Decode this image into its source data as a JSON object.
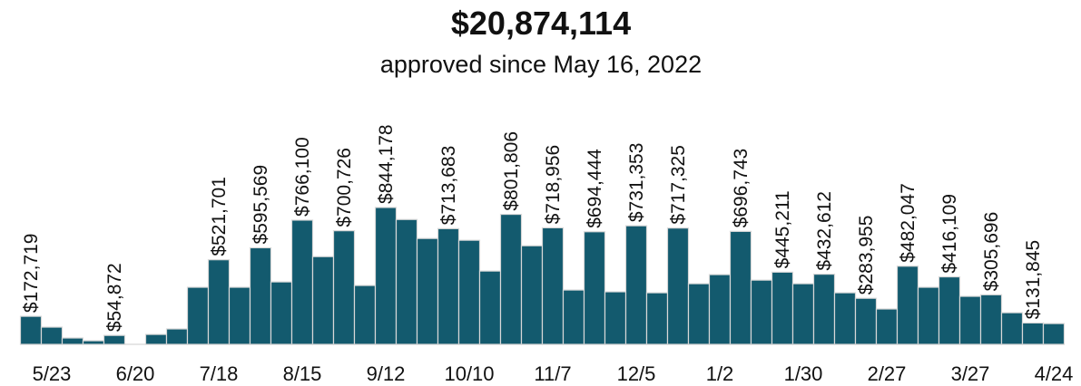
{
  "chart_data": {
    "type": "bar",
    "title": "$20,874,114",
    "subtitle": "approved since May 16, 2022",
    "color": "#135a6e",
    "ylim": [
      0,
      900000
    ],
    "categories": [
      null,
      "5/23",
      null,
      null,
      null,
      "6/20",
      null,
      null,
      null,
      "7/18",
      null,
      null,
      null,
      "8/15",
      null,
      null,
      null,
      "9/12",
      null,
      null,
      null,
      "10/10",
      null,
      null,
      null,
      "11/7",
      null,
      null,
      null,
      "12/5",
      null,
      null,
      null,
      "1/2",
      null,
      null,
      null,
      "1/30",
      null,
      null,
      null,
      "2/27",
      null,
      null,
      null,
      "3/27",
      null,
      null,
      null,
      "4/24"
    ],
    "values": [
      172719,
      106000,
      39000,
      22000,
      54872,
      0,
      61000,
      95000,
      352000,
      521701,
      352000,
      595569,
      385000,
      766100,
      541000,
      700726,
      363000,
      844178,
      770000,
      653000,
      713683,
      642000,
      452000,
      801806,
      608000,
      718956,
      335000,
      694444,
      324000,
      731353,
      318000,
      717325,
      374000,
      430000,
      696743,
      396000,
      445211,
      374000,
      432612,
      318000,
      283955,
      218000,
      482047,
      352000,
      416109,
      296000,
      305696,
      195000,
      131845,
      128000
    ],
    "value_labels": [
      "$172,719",
      null,
      null,
      null,
      "$54,872",
      null,
      null,
      null,
      null,
      "$521,701",
      null,
      "$595,569",
      null,
      "$766,100",
      null,
      "$700,726",
      null,
      "$844,178",
      null,
      null,
      "$713,683",
      null,
      null,
      "$801,806",
      null,
      "$718,956",
      null,
      "$694,444",
      null,
      "$731,353",
      null,
      "$717,325",
      null,
      null,
      "$696,743",
      null,
      "$445,211",
      null,
      "$432,612",
      null,
      "$283,955",
      null,
      "$482,047",
      null,
      "$416,109",
      null,
      "$305,696",
      null,
      "$131,845",
      null
    ]
  }
}
